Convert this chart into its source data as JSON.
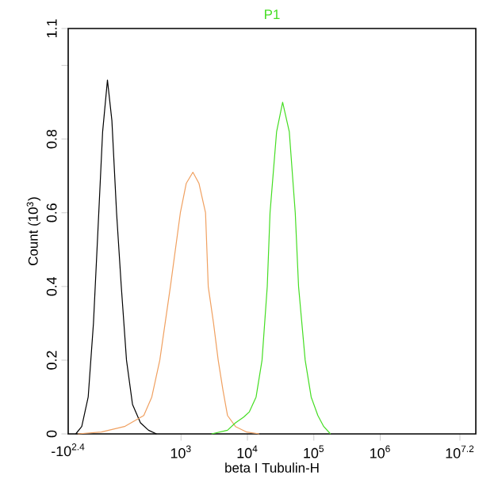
{
  "chart_data": {
    "type": "line",
    "title": "P1",
    "xlabel": "beta I Tubulin-H",
    "ylabel": "Count (10$^{3}$)",
    "log": "x",
    "xlim": [
      20,
      27500000
    ],
    "ylim": [
      0,
      1.1
    ],
    "xticks": [
      {
        "value": 1000,
        "label": "10$^{3}$"
      },
      {
        "value": 10000,
        "label": "10$^{4}$"
      },
      {
        "value": 100000,
        "label": "10$^{5}$"
      },
      {
        "value": 1000000,
        "label": "10$^{6}$"
      },
      {
        "value": 15848932,
        "label": "10$^{7.2}$"
      }
    ],
    "yticks": [
      0,
      0.2,
      0.4,
      0.6,
      0.8,
      {
        "value": 1.0,
        "label": null
      },
      1.1
    ],
    "annotations": [
      "-10$^{2.4}$"
    ],
    "marker": "none",
    "line_style": "solid",
    "series": [
      {
        "color": "#000000",
        "x": [
          26,
          32,
          40,
          48,
          56,
          66,
          78,
          91,
          107,
          126,
          151,
          186,
          245,
          324,
          427
        ],
        "values": [
          0,
          0.02,
          0.1,
          0.3,
          0.55,
          0.82,
          0.96,
          0.85,
          0.6,
          0.4,
          0.2,
          0.08,
          0.03,
          0.01,
          0
        ]
      },
      {
        "color": "#f0a060",
        "x": [
          28,
          63,
          141,
          275,
          363,
          479,
          692,
          977,
          1200,
          1510,
          1860,
          2340,
          2570,
          3090,
          3630,
          4270,
          5010,
          6610,
          9770,
          15100
        ],
        "values": [
          0,
          0.005,
          0.02,
          0.05,
          0.1,
          0.2,
          0.4,
          0.6,
          0.68,
          0.71,
          0.68,
          0.6,
          0.4,
          0.3,
          0.2,
          0.12,
          0.05,
          0.02,
          0.005,
          0
        ]
      },
      {
        "color": "#44dd22",
        "x": [
          2880,
          5010,
          6610,
          8710,
          10700,
          13500,
          16600,
          19900,
          21900,
          27500,
          33900,
          42700,
          52500,
          58900,
          74100,
          91200,
          115000,
          141000,
          178000
        ],
        "values": [
          0,
          0.01,
          0.03,
          0.045,
          0.06,
          0.1,
          0.2,
          0.4,
          0.6,
          0.82,
          0.9,
          0.82,
          0.6,
          0.4,
          0.2,
          0.1,
          0.05,
          0.02,
          0
        ]
      }
    ]
  }
}
